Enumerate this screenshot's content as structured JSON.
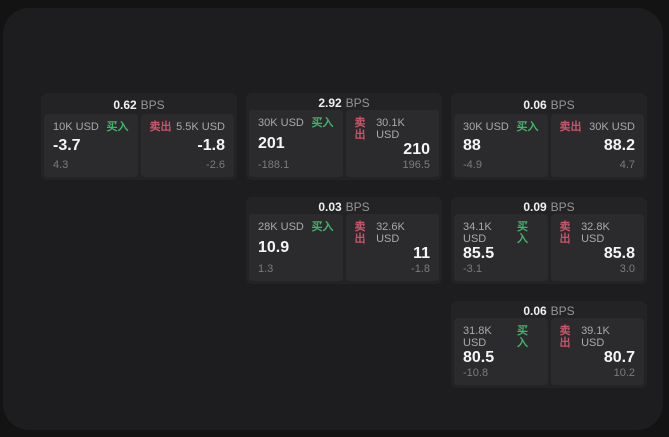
{
  "labels": {
    "bps_unit": "BPS",
    "buy": "买入",
    "sell": "卖出"
  },
  "colors": {
    "page_bg": "#131314",
    "panel_bg": "#1d1d1f",
    "card_bg": "#232325",
    "pane_bg": "#2b2b2d",
    "buy_accent": "#42b369",
    "sell_accent": "#c9556b",
    "value_text": "#f5f5f5",
    "muted_text": "#a9a9ad"
  },
  "cards": [
    {
      "bps": "0.62",
      "buy": {
        "amount": "10K USD",
        "value": "-3.7",
        "sub": "4.3"
      },
      "sell": {
        "amount": "5.5K USD",
        "value": "-1.8",
        "sub": "-2.6"
      }
    },
    {
      "bps": "2.92",
      "buy": {
        "amount": "30K USD",
        "value": "201",
        "sub": "-188.1"
      },
      "sell": {
        "amount": "30.1K USD",
        "value": "210",
        "sub": "196.5"
      }
    },
    {
      "bps": "0.06",
      "buy": {
        "amount": "30K USD",
        "value": "88",
        "sub": "-4.9"
      },
      "sell": {
        "amount": "30K USD",
        "value": "88.2",
        "sub": "4.7"
      }
    },
    {
      "bps": "0.03",
      "buy": {
        "amount": "28K USD",
        "value": "10.9",
        "sub": "1.3"
      },
      "sell": {
        "amount": "32.6K USD",
        "value": "11",
        "sub": "-1.8"
      }
    },
    {
      "bps": "0.09",
      "buy": {
        "amount": "34.1K USD",
        "value": "85.5",
        "sub": "-3.1"
      },
      "sell": {
        "amount": "32.8K USD",
        "value": "85.8",
        "sub": "3.0"
      }
    },
    {
      "bps": "0.06",
      "buy": {
        "amount": "31.8K USD",
        "value": "80.5",
        "sub": "-10.8"
      },
      "sell": {
        "amount": "39.1K USD",
        "value": "80.7",
        "sub": "10.2"
      }
    }
  ]
}
